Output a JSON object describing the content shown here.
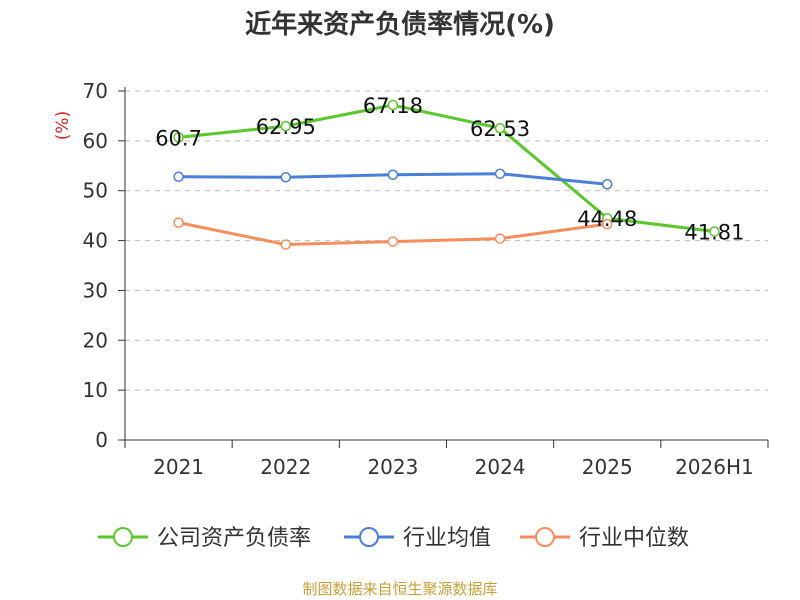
{
  "chart_data": {
    "type": "line",
    "title": "近年来资产负债率情况(%)",
    "ylabel": "(%)",
    "xlabel": "",
    "categories": [
      "2021",
      "2022",
      "2023",
      "2024",
      "2025",
      "2026H1"
    ],
    "ylim": [
      0,
      70
    ],
    "yticks": [
      0,
      10,
      20,
      30,
      40,
      50,
      60,
      70
    ],
    "grid": true,
    "legend_position": "bottom",
    "series": [
      {
        "name": "公司资产负债率",
        "color": "#5ac72c",
        "values": [
          60.7,
          62.95,
          67.18,
          62.53,
          44.48,
          41.81
        ],
        "labels": [
          "60.7",
          "62.95",
          "67.18",
          "62.53",
          "44.48",
          "41.81"
        ]
      },
      {
        "name": "行业均值",
        "color": "#4a7fd9",
        "values": [
          52.8,
          52.7,
          53.2,
          53.4,
          51.3,
          null
        ],
        "labels": null
      },
      {
        "name": "行业中位数",
        "color": "#f78d5c",
        "values": [
          43.6,
          39.2,
          39.8,
          40.4,
          43.3,
          null
        ],
        "labels": null
      }
    ]
  },
  "footer": {
    "source": "制图数据来自恒生聚源数据库"
  }
}
